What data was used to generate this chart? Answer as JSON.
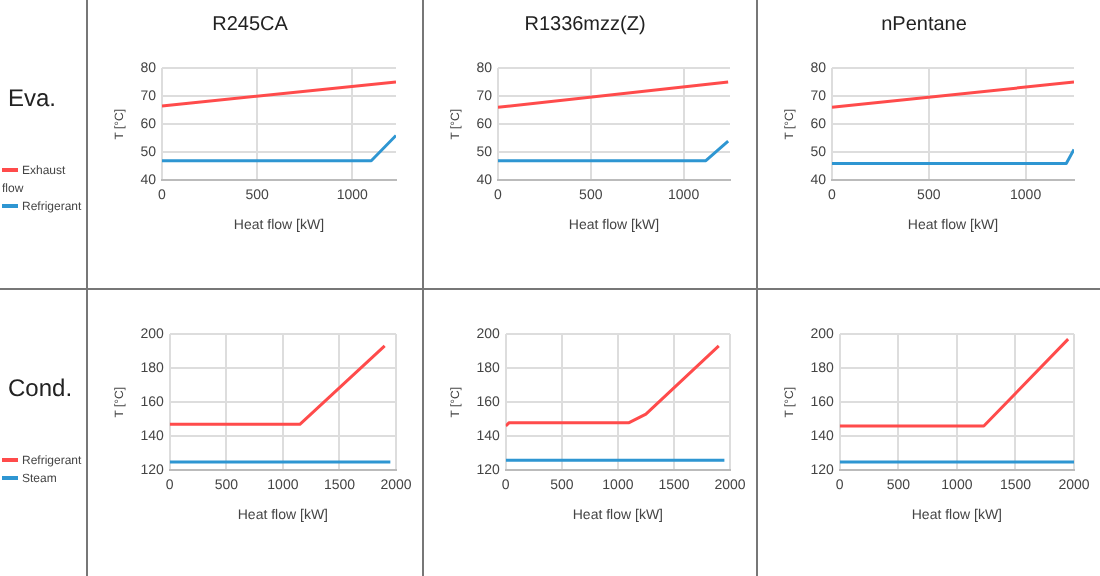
{
  "chart_data": [
    {
      "type": "line",
      "title": "R245CA",
      "xlabel": "Heat flow [kW]",
      "ylabel": "T [°C]",
      "annotations": [
        "Eva."
      ],
      "xlim": [
        0,
        1230
      ],
      "xticks": [
        0,
        500,
        1000
      ],
      "ylim": [
        40,
        80
      ],
      "yticks": [
        40,
        50,
        60,
        70,
        80
      ],
      "grid": true,
      "legend": "left",
      "marker": "none",
      "series": [
        {
          "name": "Exhaust flow",
          "color": "#ff4b4b",
          "x": [
            0,
            1230
          ],
          "values": [
            66.5,
            75
          ]
        },
        {
          "name": "Refrigerant",
          "color": "#2e96d2",
          "x": [
            0,
            1100,
            1230
          ],
          "values": [
            47,
            47,
            56
          ]
        }
      ]
    },
    {
      "type": "line",
      "title": "R1336mzz(Z)",
      "xlabel": "Heat flow [kW]",
      "ylabel": "T [°C]",
      "xlim": [
        0,
        1250
      ],
      "xticks": [
        0,
        500,
        1000
      ],
      "ylim": [
        40,
        80
      ],
      "yticks": [
        40,
        50,
        60,
        70,
        80
      ],
      "grid": true,
      "marker": "none",
      "series": [
        {
          "color": "#ff4b4b",
          "x": [
            0,
            1240
          ],
          "values": [
            66,
            75
          ]
        },
        {
          "color": "#2e96d2",
          "x": [
            0,
            1120,
            1240
          ],
          "values": [
            47,
            47,
            54
          ]
        }
      ]
    },
    {
      "type": "line",
      "title": "nPentane",
      "xlabel": "Heat flow [kW]",
      "ylabel": "T [°C]",
      "xlim": [
        0,
        1250
      ],
      "xticks": [
        0,
        500,
        1000
      ],
      "ylim": [
        40,
        80
      ],
      "yticks": [
        40,
        50,
        60,
        70,
        80
      ],
      "grid": true,
      "marker": "none",
      "series": [
        {
          "color": "#ff4b4b",
          "x": [
            0,
            1250
          ],
          "values": [
            66,
            75
          ]
        },
        {
          "color": "#2e96d2",
          "x": [
            0,
            1210,
            1250
          ],
          "values": [
            46,
            46,
            51
          ]
        }
      ]
    },
    {
      "type": "line",
      "xlabel": "Heat flow [kW]",
      "ylabel": "T [°C]",
      "annotations": [
        "Cond."
      ],
      "xlim": [
        0,
        2000
      ],
      "xticks": [
        0,
        500,
        1000,
        1500,
        2000
      ],
      "ylim": [
        120,
        200
      ],
      "yticks": [
        120,
        140,
        160,
        180,
        200
      ],
      "grid": true,
      "legend": "left",
      "marker": "none",
      "series": [
        {
          "name": "Refrigerant",
          "color": "#ff4b4b",
          "x": [
            0,
            1150,
            1900
          ],
          "values": [
            147,
            147,
            193
          ]
        },
        {
          "name": "Steam",
          "color": "#2e96d2",
          "x": [
            0,
            1950
          ],
          "values": [
            125,
            125
          ]
        }
      ]
    },
    {
      "type": "line",
      "xlabel": "Heat flow [kW]",
      "ylabel": "T [°C]",
      "xlim": [
        0,
        2000
      ],
      "xticks": [
        0,
        500,
        1000,
        1500,
        2000
      ],
      "ylim": [
        120,
        200
      ],
      "yticks": [
        120,
        140,
        160,
        180,
        200
      ],
      "grid": true,
      "marker": "none",
      "series": [
        {
          "color": "#ff4b4b",
          "x": [
            0,
            30,
            1100,
            1250,
            1900
          ],
          "values": [
            146,
            148,
            148,
            153,
            193
          ]
        },
        {
          "color": "#2e96d2",
          "x": [
            0,
            1950
          ],
          "values": [
            126,
            126
          ]
        }
      ]
    },
    {
      "type": "line",
      "xlabel": "Heat flow [kW]",
      "ylabel": "T [°C]",
      "xlim": [
        0,
        2000
      ],
      "xticks": [
        0,
        500,
        1000,
        1500,
        2000
      ],
      "ylim": [
        120,
        200
      ],
      "yticks": [
        120,
        140,
        160,
        180,
        200
      ],
      "grid": true,
      "marker": "none",
      "series": [
        {
          "color": "#ff4b4b",
          "x": [
            0,
            1230,
            1950
          ],
          "values": [
            146,
            146,
            197
          ]
        },
        {
          "color": "#2e96d2",
          "x": [
            0,
            2000
          ],
          "values": [
            125,
            125
          ]
        }
      ]
    }
  ]
}
